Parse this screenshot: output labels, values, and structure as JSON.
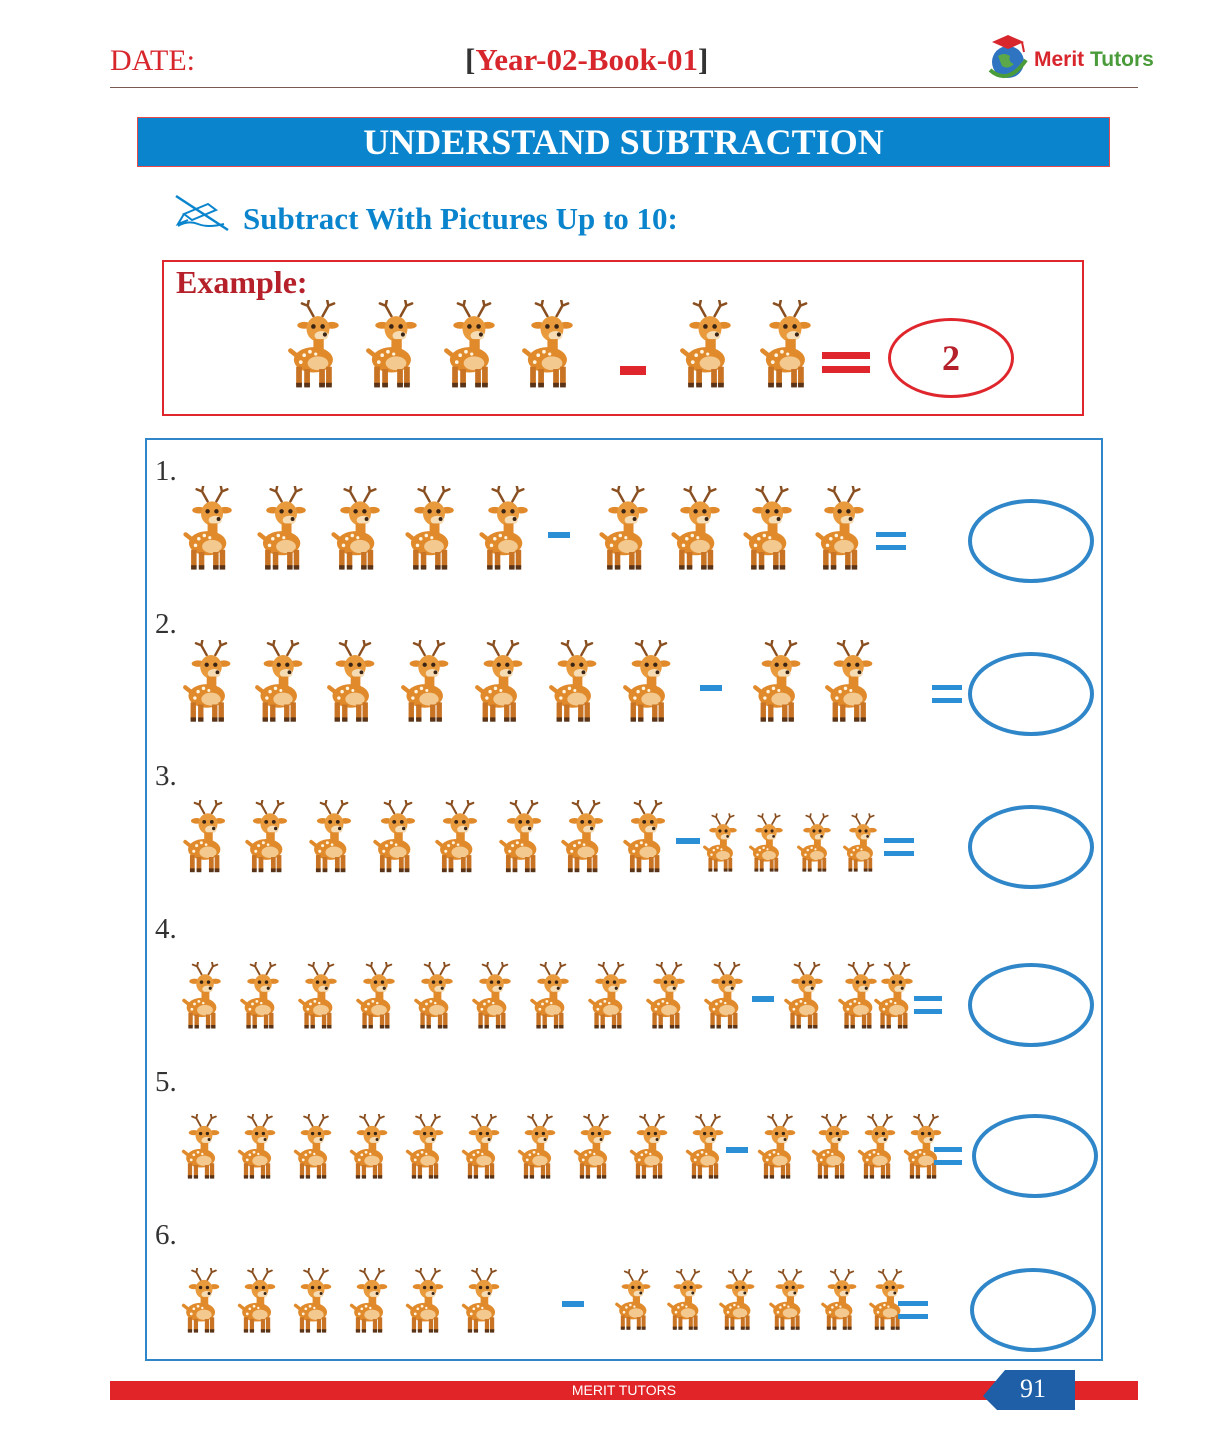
{
  "header": {
    "date_label": "DATE:",
    "book_open": "[",
    "book_label": "Year-02-Book-01",
    "book_close": "]",
    "logo_text_1": "Merit",
    "logo_text_2": "Tutors"
  },
  "title": "UNDERSTAND SUBTRACTION",
  "subtitle": "Subtract With Pictures Up to 10:",
  "example": {
    "label": "Example:",
    "minuend_count": 4,
    "subtrahend_count": 2,
    "answer": "2"
  },
  "questions": [
    {
      "number": "1.",
      "minuend_count": 5,
      "subtrahend_count": 4
    },
    {
      "number": "2.",
      "minuend_count": 7,
      "subtrahend_count": 2
    },
    {
      "number": "3.",
      "minuend_count": 8,
      "subtrahend_count": 4
    },
    {
      "number": "4.",
      "minuend_count": 10,
      "subtrahend_count": 3
    },
    {
      "number": "5.",
      "minuend_count": 10,
      "subtrahend_count": 4
    },
    {
      "number": "6.",
      "minuend_count": 6,
      "subtrahend_count": 6
    }
  ],
  "footer": {
    "brand": "MERIT TUTORS",
    "page_number": "91"
  },
  "colors": {
    "red": "#d8262d",
    "blue": "#0a84cc",
    "deer_body": "#e08a2c"
  },
  "icons": [
    "pencil-icon",
    "logo-globe-icon",
    "deer-icon"
  ]
}
